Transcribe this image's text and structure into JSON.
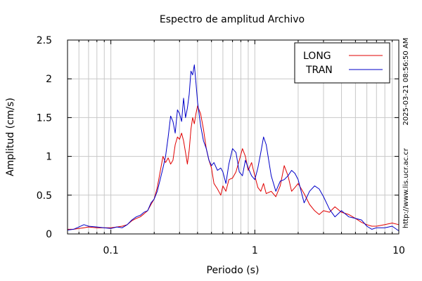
{
  "chart_data": {
    "type": "line",
    "title": "Espectro de amplitud Archivo",
    "xlabel": "Periodo (s)",
    "ylabel": "Amplitud (cm/s)",
    "x_scale": "log",
    "xlim": [
      0.05,
      10
    ],
    "ylim": [
      0,
      2.5
    ],
    "x_tick_labels": [
      "0.1",
      "1",
      "10"
    ],
    "y_tick_labels": [
      "0",
      "0.5",
      "1",
      "1.5",
      "2",
      "2.5"
    ],
    "grid": true,
    "legend_position": "top-right",
    "side_annotations": [
      "2025-03-21 08:56:50 AM",
      "http://www.lis.ucr.ac.cr"
    ],
    "series": [
      {
        "name": "LONG",
        "color": "#e00000",
        "x": [
          0.05,
          0.055,
          0.06,
          0.065,
          0.07,
          0.08,
          0.09,
          0.1,
          0.11,
          0.12,
          0.13,
          0.14,
          0.15,
          0.16,
          0.17,
          0.18,
          0.19,
          0.2,
          0.21,
          0.22,
          0.23,
          0.24,
          0.25,
          0.26,
          0.27,
          0.28,
          0.29,
          0.3,
          0.31,
          0.32,
          0.33,
          0.34,
          0.35,
          0.36,
          0.37,
          0.38,
          0.39,
          0.4,
          0.42,
          0.44,
          0.46,
          0.48,
          0.5,
          0.52,
          0.55,
          0.58,
          0.6,
          0.63,
          0.66,
          0.7,
          0.74,
          0.78,
          0.82,
          0.86,
          0.9,
          0.95,
          1.0,
          1.05,
          1.1,
          1.15,
          1.2,
          1.3,
          1.4,
          1.5,
          1.6,
          1.7,
          1.8,
          1.9,
          2.0,
          2.2,
          2.4,
          2.6,
          2.8,
          3.0,
          3.3,
          3.6,
          4.0,
          4.5,
          5.0,
          5.5,
          6.0,
          6.5,
          7.0,
          8.0,
          9.0,
          10.0
        ],
        "values": [
          0.06,
          0.06,
          0.07,
          0.08,
          0.09,
          0.08,
          0.08,
          0.08,
          0.09,
          0.1,
          0.12,
          0.17,
          0.2,
          0.22,
          0.26,
          0.3,
          0.38,
          0.45,
          0.6,
          0.8,
          1.0,
          0.92,
          0.98,
          0.9,
          0.95,
          1.15,
          1.25,
          1.22,
          1.3,
          1.2,
          1.05,
          0.9,
          1.08,
          1.35,
          1.5,
          1.42,
          1.55,
          1.65,
          1.55,
          1.35,
          1.1,
          0.95,
          0.85,
          0.65,
          0.58,
          0.5,
          0.62,
          0.55,
          0.7,
          0.72,
          0.8,
          0.95,
          1.1,
          1.0,
          0.82,
          0.92,
          0.75,
          0.6,
          0.55,
          0.65,
          0.52,
          0.55,
          0.48,
          0.62,
          0.88,
          0.75,
          0.55,
          0.6,
          0.65,
          0.52,
          0.38,
          0.3,
          0.25,
          0.3,
          0.28,
          0.35,
          0.28,
          0.25,
          0.2,
          0.15,
          0.12,
          0.1,
          0.1,
          0.12,
          0.14,
          0.12
        ]
      },
      {
        "name": "TRAN",
        "color": "#0000c8",
        "x": [
          0.05,
          0.055,
          0.06,
          0.065,
          0.07,
          0.08,
          0.09,
          0.1,
          0.11,
          0.12,
          0.13,
          0.14,
          0.15,
          0.16,
          0.17,
          0.18,
          0.19,
          0.2,
          0.21,
          0.22,
          0.23,
          0.24,
          0.25,
          0.26,
          0.27,
          0.28,
          0.29,
          0.3,
          0.31,
          0.32,
          0.33,
          0.34,
          0.35,
          0.36,
          0.37,
          0.38,
          0.39,
          0.4,
          0.42,
          0.44,
          0.46,
          0.48,
          0.5,
          0.52,
          0.55,
          0.58,
          0.6,
          0.63,
          0.66,
          0.7,
          0.74,
          0.78,
          0.82,
          0.86,
          0.9,
          0.95,
          1.0,
          1.05,
          1.1,
          1.15,
          1.2,
          1.3,
          1.4,
          1.5,
          1.6,
          1.7,
          1.8,
          1.9,
          2.0,
          2.2,
          2.4,
          2.6,
          2.8,
          3.0,
          3.3,
          3.6,
          4.0,
          4.5,
          5.0,
          5.5,
          6.0,
          6.5,
          7.0,
          8.0,
          9.0,
          10.0
        ],
        "values": [
          0.05,
          0.06,
          0.09,
          0.12,
          0.1,
          0.09,
          0.08,
          0.07,
          0.09,
          0.08,
          0.12,
          0.18,
          0.22,
          0.24,
          0.28,
          0.3,
          0.4,
          0.45,
          0.55,
          0.7,
          0.85,
          1.0,
          1.25,
          1.52,
          1.45,
          1.3,
          1.6,
          1.55,
          1.45,
          1.75,
          1.5,
          1.62,
          1.8,
          2.1,
          2.05,
          2.18,
          1.95,
          1.7,
          1.4,
          1.2,
          1.1,
          0.95,
          0.88,
          0.92,
          0.82,
          0.85,
          0.8,
          0.65,
          0.9,
          1.1,
          1.05,
          0.8,
          0.75,
          0.95,
          0.85,
          0.75,
          0.7,
          0.85,
          1.05,
          1.25,
          1.15,
          0.75,
          0.55,
          0.68,
          0.7,
          0.75,
          0.82,
          0.78,
          0.7,
          0.4,
          0.55,
          0.62,
          0.58,
          0.48,
          0.32,
          0.22,
          0.3,
          0.22,
          0.2,
          0.18,
          0.1,
          0.06,
          0.08,
          0.08,
          0.1,
          0.04
        ]
      }
    ]
  }
}
